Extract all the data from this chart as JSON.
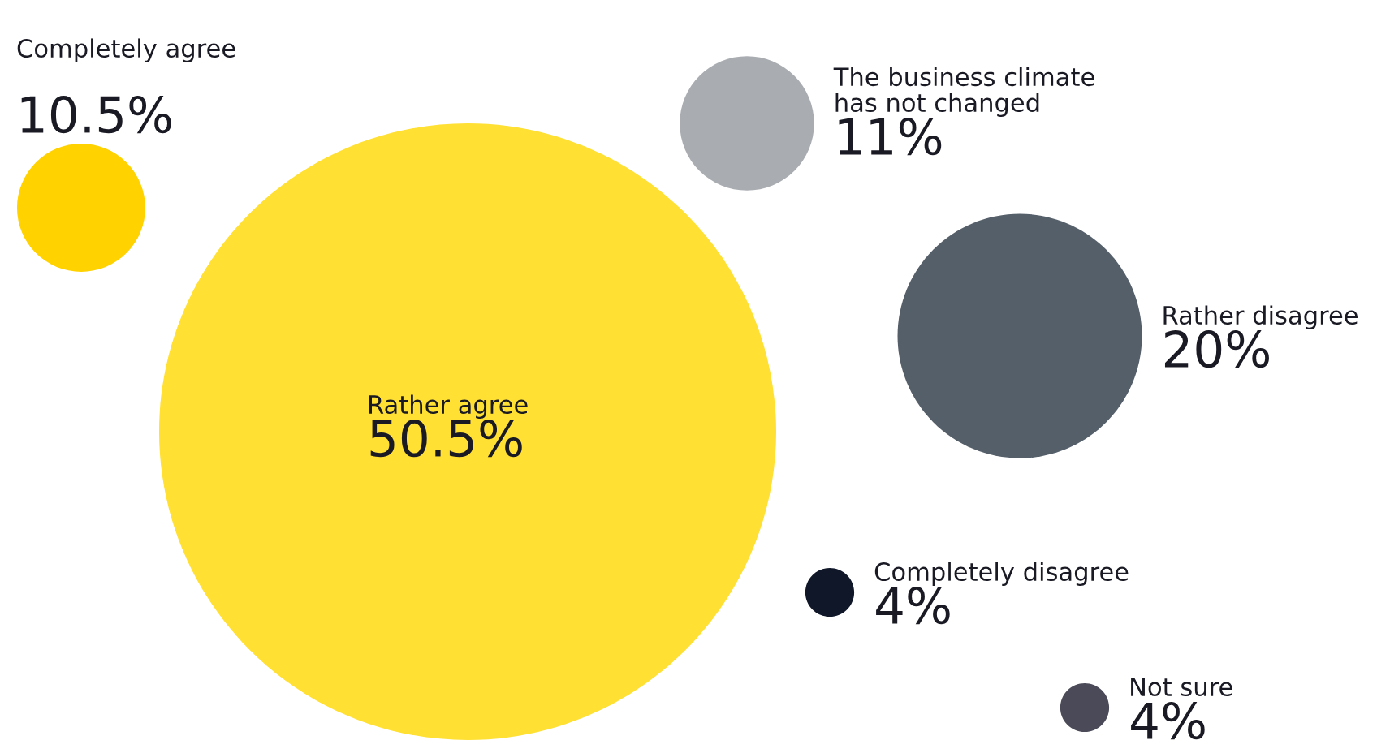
{
  "chart_data": {
    "type": "other",
    "categories": [
      "Completely agree",
      "Rather agree",
      "The business climate\nhas not changed",
      "Rather disagree",
      "Completely disagree",
      "Not sure"
    ],
    "values": [
      10.5,
      50.5,
      11,
      20,
      4,
      4
    ],
    "value_labels": [
      "10.5%",
      "50.5%",
      "11%",
      "20%",
      "4%",
      "4%"
    ],
    "colors": [
      "#ffd200",
      "#ffe033",
      "#a9adb2",
      "#555f6a",
      "#0f1729",
      "#4a4a58"
    ]
  }
}
